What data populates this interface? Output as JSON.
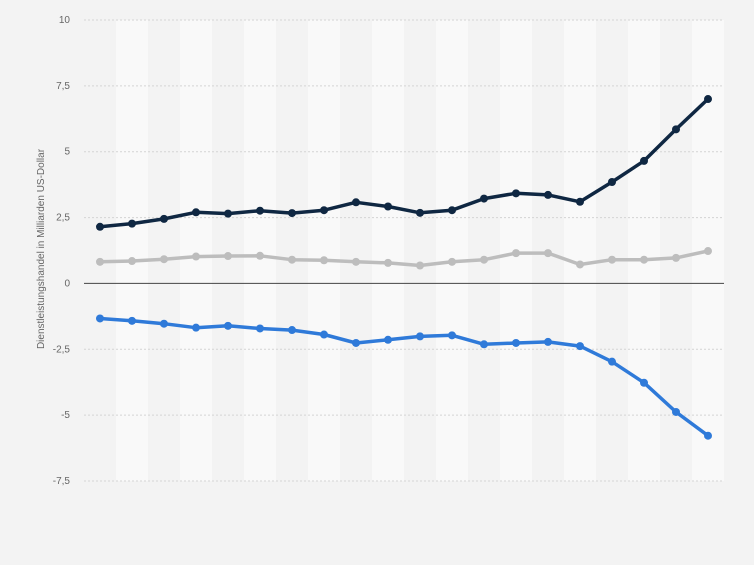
{
  "chart_data": {
    "type": "line",
    "title": "",
    "xlabel": "",
    "ylabel": "Dienstleistungshandel in Milliarden US-Dollar",
    "ylim": [
      -7.5,
      10
    ],
    "yticks": [
      10,
      7.5,
      5,
      2.5,
      0,
      -2.5,
      -5,
      -7.5
    ],
    "ytick_labels": [
      "10",
      "7,5",
      "5",
      "2,5",
      "0",
      "-2,5",
      "-5",
      "-7,5"
    ],
    "grid": true,
    "legend": "none",
    "x_count": 20,
    "series": [
      {
        "color": "#0f2742",
        "values": [
          2.15,
          2.27,
          2.45,
          2.7,
          2.65,
          2.76,
          2.67,
          2.78,
          3.08,
          2.92,
          2.68,
          2.78,
          3.22,
          3.42,
          3.36,
          3.1,
          3.85,
          4.65,
          5.85,
          7.0
        ]
      },
      {
        "color": "#bdbdbd",
        "values": [
          0.82,
          0.85,
          0.92,
          1.02,
          1.04,
          1.05,
          0.9,
          0.88,
          0.82,
          0.78,
          0.68,
          0.82,
          0.9,
          1.15,
          1.15,
          0.72,
          0.9,
          0.9,
          0.97,
          1.23
        ]
      },
      {
        "color": "#2f7ad9",
        "values": [
          -1.33,
          -1.42,
          -1.53,
          -1.68,
          -1.61,
          -1.71,
          -1.77,
          -1.94,
          -2.26,
          -2.14,
          -2.01,
          -1.97,
          -2.31,
          -2.26,
          -2.22,
          -2.38,
          -2.97,
          -3.77,
          -4.88,
          -5.78
        ]
      }
    ]
  }
}
